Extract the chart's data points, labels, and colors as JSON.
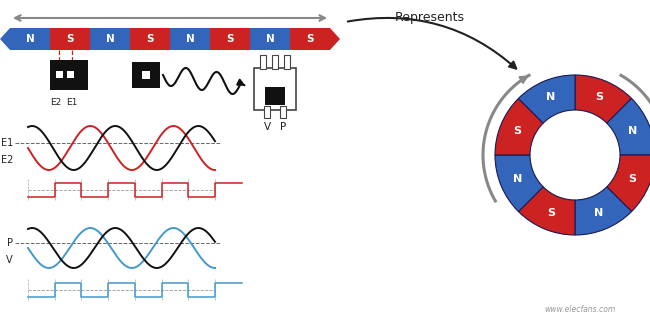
{
  "bg_color": "#ffffff",
  "magnet_bar": {
    "segments": [
      "N",
      "S",
      "N",
      "S",
      "N",
      "S",
      "N",
      "S"
    ],
    "colors_cycle": [
      "#3366bb",
      "#cc2222"
    ],
    "text_color": "#ffffff"
  },
  "represents_text": "Represents",
  "sine_e1_color": "#cc2222",
  "sine_e2_color": "#111111",
  "sine_p_color": "#4499cc",
  "sine_v_color": "#111111",
  "ring_colors": [
    "#cc2222",
    "#3366bb",
    "#cc2222",
    "#3366bb",
    "#cc2222",
    "#3366bb",
    "#cc2222",
    "#3366bb"
  ],
  "ring_labels": [
    "S",
    "N",
    "S",
    "N",
    "S",
    "N",
    "S",
    "N"
  ],
  "arrow_color": "#888888",
  "dark_color": "#222222",
  "watermark": "www.elecfans.com"
}
